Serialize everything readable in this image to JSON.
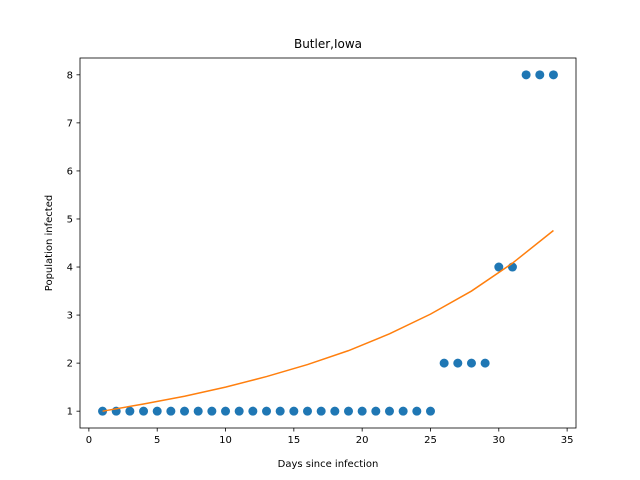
{
  "chart_data": {
    "type": "scatter",
    "title": "Butler,Iowa",
    "xlabel": "Days since infection",
    "ylabel": "Population infected",
    "xlim": [
      -0.65,
      35.65
    ],
    "ylim": [
      0.65,
      8.35
    ],
    "xticks": [
      0,
      5,
      10,
      15,
      20,
      25,
      30,
      35
    ],
    "yticks": [
      1,
      2,
      3,
      4,
      5,
      6,
      7,
      8
    ],
    "grid": false,
    "series": [
      {
        "type": "scatter",
        "color": "#1f77b4",
        "x": [
          1,
          2,
          3,
          4,
          5,
          6,
          7,
          8,
          9,
          10,
          11,
          12,
          13,
          14,
          15,
          16,
          17,
          18,
          19,
          20,
          21,
          22,
          23,
          24,
          25,
          26,
          27,
          28,
          29,
          30,
          31,
          32,
          33,
          34
        ],
        "y": [
          1,
          1,
          1,
          1,
          1,
          1,
          1,
          1,
          1,
          1,
          1,
          1,
          1,
          1,
          1,
          1,
          1,
          1,
          1,
          1,
          1,
          1,
          1,
          1,
          1,
          2,
          2,
          2,
          2,
          4,
          4,
          8,
          8,
          8
        ]
      },
      {
        "type": "line",
        "color": "#ff7f0e",
        "x": [
          1,
          4,
          7,
          10,
          13,
          16,
          19,
          22,
          25,
          28,
          31,
          34
        ],
        "y": [
          1.0,
          1.15,
          1.31,
          1.5,
          1.72,
          1.97,
          2.26,
          2.61,
          3.02,
          3.5,
          4.08,
          4.76
        ]
      }
    ]
  }
}
